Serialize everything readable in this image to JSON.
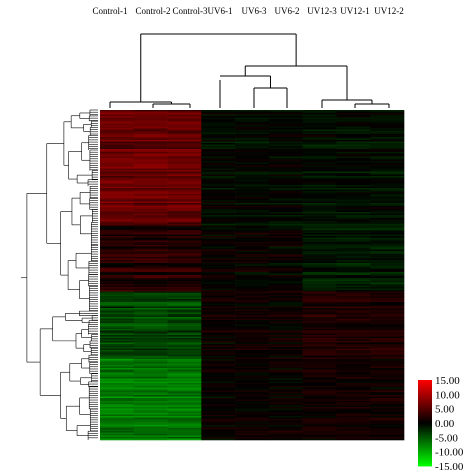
{
  "chart_data": {
    "type": "heatmap",
    "title": "",
    "xlabel": "",
    "ylabel": "",
    "columns": [
      "Control-1",
      "Control-2",
      "Control-3",
      "UV6-1",
      "UV6-3",
      "UV6-2",
      "UV12-3",
      "UV12-1",
      "UV12-2"
    ],
    "groups": [
      {
        "name": "Control",
        "columns": [
          "Control-1",
          "Control-2",
          "Control-3"
        ]
      },
      {
        "name": "UV6",
        "columns": [
          "UV6-1",
          "UV6-3",
          "UV6-2"
        ]
      },
      {
        "name": "UV12",
        "columns": [
          "UV12-3",
          "UV12-1",
          "UV12-2"
        ]
      }
    ],
    "row_pattern": {
      "rows": 220,
      "bands": [
        {
          "from_fraction": 0.0,
          "to_fraction": 0.35,
          "Control": 6.0,
          "UV6": -0.5,
          "UV12": -0.8
        },
        {
          "from_fraction": 0.35,
          "to_fraction": 0.55,
          "Control": 2.0,
          "UV6": 0.3,
          "UV12": -1.5
        },
        {
          "from_fraction": 0.55,
          "to_fraction": 0.75,
          "Control": -4.0,
          "UV6": 0.6,
          "UV12": 1.8
        },
        {
          "from_fraction": 0.75,
          "to_fraction": 1.0,
          "Control": -7.0,
          "UV6": 0.4,
          "UV12": 1.0
        }
      ]
    },
    "color_scale": {
      "min": -15.0,
      "max": 15.0,
      "low_color": "#00ff00",
      "mid_color": "#000000",
      "high_color": "#ff0000",
      "legend_labels": [
        "15.00",
        "10.00",
        "5.00",
        "0.00",
        "-5.00",
        "-10.00",
        "-15.00"
      ],
      "legend_position": "bottom-right"
    },
    "column_dendrogram": true,
    "row_dendrogram": true
  }
}
